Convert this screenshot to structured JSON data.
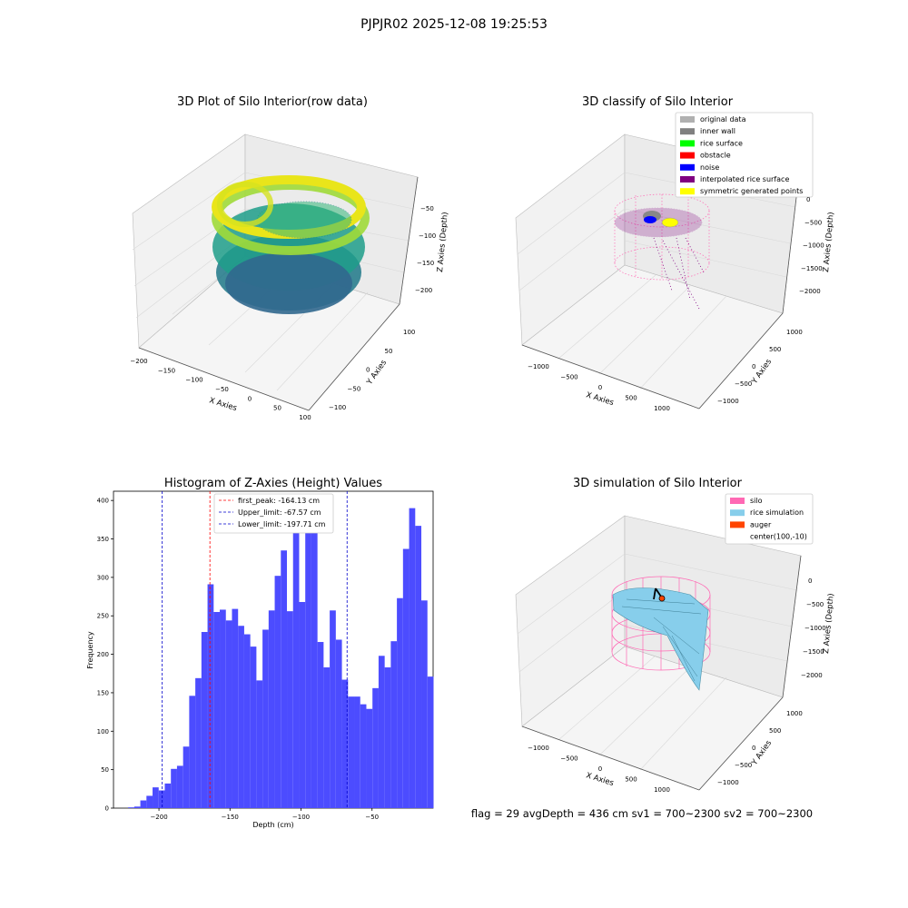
{
  "suptitle": "PJPJR02 2025-12-08 19:25:53",
  "footer": "flag = 29  avgDepth = 436 cm  sv1 = 700~2300  sv2 = 700~2300",
  "chart_data": [
    {
      "type": "scatter",
      "dims": 3,
      "title": "3D Plot of Silo Interior(row data)",
      "xlabel": "X Axies",
      "ylabel": "Y Axies",
      "zlabel": "Z Axies (Depth)",
      "xticks": [
        "−200",
        "−150",
        "−100",
        "−50",
        "0",
        "50",
        "100"
      ],
      "yticks": [
        "−100",
        "−50",
        "0",
        "50",
        "100"
      ],
      "zticks": [
        "−50",
        "−100",
        "−150",
        "−200"
      ],
      "xlim": [
        -200,
        100
      ],
      "ylim": [
        -100,
        100
      ],
      "zlim": [
        -230,
        -10
      ],
      "colormap": "viridis"
    },
    {
      "type": "scatter",
      "dims": 3,
      "title": "3D classify of Silo Interior",
      "xlabel": "X Axies",
      "ylabel": "Y Axies",
      "zlabel": "Z Axies (Depth)",
      "xticks": [
        "−1000",
        "−500",
        "0",
        "500",
        "1000"
      ],
      "yticks": [
        "−1000",
        "−500",
        "0",
        "500",
        "1000"
      ],
      "zticks": [
        "0",
        "−500",
        "−1000",
        "−1500",
        "−2000"
      ],
      "legend_position": "top-right",
      "legend": [
        {
          "label": "original data",
          "color": "#b0b0b0"
        },
        {
          "label": "inner wall",
          "color": "#808080"
        },
        {
          "label": "rice surface",
          "color": "#00ff00"
        },
        {
          "label": "obstacle",
          "color": "#ff0000"
        },
        {
          "label": "noise",
          "color": "#0000ff"
        },
        {
          "label": "interpolated rice surface",
          "color": "#800080"
        },
        {
          "label": "symmetric generated points",
          "color": "#ffff00"
        }
      ]
    },
    {
      "type": "bar",
      "title": "Histogram of Z-Axies (Height) Values",
      "xlabel": "Depth (cm)",
      "ylabel": "Frequency",
      "xlim": [
        -232,
        -7
      ],
      "ylim": [
        0,
        412
      ],
      "xticks": [
        -200,
        -150,
        -100,
        -50
      ],
      "xtick_labels": [
        "−200",
        "−150",
        "−100",
        "−50"
      ],
      "yticks": [
        0,
        50,
        100,
        150,
        200,
        250,
        300,
        350,
        400
      ],
      "bin_start": -226,
      "bin_width": 4.3,
      "values": [
        0,
        1,
        2,
        10,
        16,
        27,
        23,
        32,
        51,
        55,
        80,
        146,
        169,
        229,
        291,
        255,
        258,
        244,
        259,
        237,
        226,
        210,
        166,
        232,
        257,
        302,
        335,
        256,
        390,
        268,
        400,
        378,
        216,
        183,
        257,
        219,
        167,
        145,
        145,
        135,
        129,
        156,
        198,
        183,
        217,
        273,
        337,
        390,
        367,
        270,
        171
      ],
      "bar_color": "#4c4cff",
      "lines": [
        {
          "label": "first_peak: -164.13 cm",
          "x": -164.13,
          "color": "#ff0000"
        },
        {
          "label": "Upper_limit: -67.57 cm",
          "x": -67.57,
          "color": "#0000cc"
        },
        {
          "label": "Lower_limit: -197.71 cm",
          "x": -197.71,
          "color": "#0000cc"
        }
      ],
      "legend_position": "top-center"
    },
    {
      "type": "surface",
      "dims": 3,
      "title": "3D simulation of Silo Interior",
      "xlabel": "X Axies",
      "ylabel": "Y Axies",
      "zlabel": "Z Axies (Depth)",
      "xticks": [
        "−1000",
        "−500",
        "0",
        "500",
        "1000"
      ],
      "yticks": [
        "−1000",
        "−500",
        "0",
        "500",
        "1000"
      ],
      "zticks": [
        "0",
        "−500",
        "−1000",
        "−1500",
        "−2000"
      ],
      "legend_position": "top-right",
      "legend": [
        {
          "label": "silo",
          "color": "#ff69b4"
        },
        {
          "label": "rice simulation",
          "color": "#87ceeb"
        },
        {
          "label": "auger",
          "color": "#ff4500"
        },
        {
          "label": "center(100,-10)",
          "color": ""
        }
      ]
    }
  ]
}
